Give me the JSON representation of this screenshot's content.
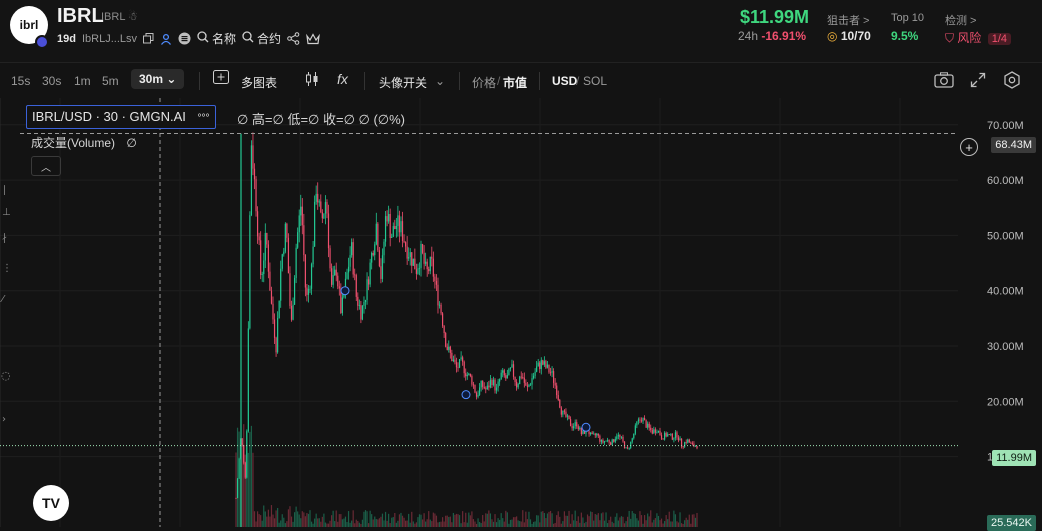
{
  "token": {
    "name": "IBRL",
    "symbol": "IBRL",
    "logo_text": "ibrl",
    "age": "19d",
    "address": "IbRLJ...Lsv",
    "name_search_label": "名称",
    "contract_search_label": "合约"
  },
  "market": {
    "market_cap": "$11.99M",
    "period_label": "24h",
    "change": "-16.91%",
    "snipers_label": "狙击者 >",
    "snipers_value": "10/70",
    "top10_label": "Top 10",
    "top10_value": "9.5%",
    "audit_label": "检测 >",
    "risk_label": "风险",
    "risk_value": "1/4"
  },
  "toolbar": {
    "timeframes": [
      "15s",
      "30s",
      "1m",
      "5m"
    ],
    "active_timeframe": "30m",
    "multi_chart_label": "多图表",
    "avatar_toggle_label": "头像开关",
    "price_label": "价格",
    "mcap_label": "市值",
    "usd_label": "USD",
    "sol_label": "SOL",
    "formula_glyph": "fx"
  },
  "legend": {
    "pair": "IBRL/USD · 30 · GMGN.AI",
    "dots": "°°°",
    "rest": "∅ 高=∅ 低=∅ 收=∅ ∅ (∅%)",
    "volume_label": "成交量(Volume)",
    "volume_value": "∅",
    "collapse_glyph": "︿"
  },
  "axis": {
    "ticks": [
      {
        "label": "70.00M",
        "value": 70
      },
      {
        "label": "60.00M",
        "value": 60
      },
      {
        "label": "50.00M",
        "value": 50
      },
      {
        "label": "40.00M",
        "value": 40
      },
      {
        "label": "30.00M",
        "value": 30
      },
      {
        "label": "20.00M",
        "value": 20
      },
      {
        "label": "10.00M",
        "value": 10
      }
    ],
    "crosshair_label": "68.43M",
    "crosshair_value": 68.43,
    "current_label": "11.99M",
    "current_value": 11.99,
    "volume_label": "25.542K"
  },
  "chart_data": {
    "type": "line",
    "series": [
      {
        "values": [
          2.5,
          14,
          5,
          68,
          56,
          42,
          50,
          38,
          30,
          45,
          52,
          33,
          48,
          56,
          38,
          43,
          59,
          52,
          57,
          40,
          44,
          36,
          42,
          48,
          39,
          36,
          40,
          46,
          52,
          42,
          55,
          50,
          52,
          51,
          48,
          46,
          44,
          47,
          43,
          45,
          40,
          36,
          30,
          28,
          26,
          27,
          25,
          24,
          21,
          23,
          22,
          24,
          22,
          25,
          24,
          26,
          23,
          25,
          22,
          24,
          26,
          27,
          26,
          25,
          22,
          18,
          17,
          15.5,
          16,
          14,
          15,
          13.5,
          14,
          12.5,
          13,
          12.5,
          14,
          13,
          11,
          13,
          16,
          17,
          15.5,
          14.5,
          15,
          13.5,
          14,
          13.5,
          14,
          12,
          13,
          12,
          11.99
        ]
      }
    ],
    "ylim": [
      5,
      72
    ]
  },
  "colors": {
    "up": "#22c993",
    "down": "#f0506e",
    "accent": "#3fd77f",
    "bg": "#131313"
  }
}
